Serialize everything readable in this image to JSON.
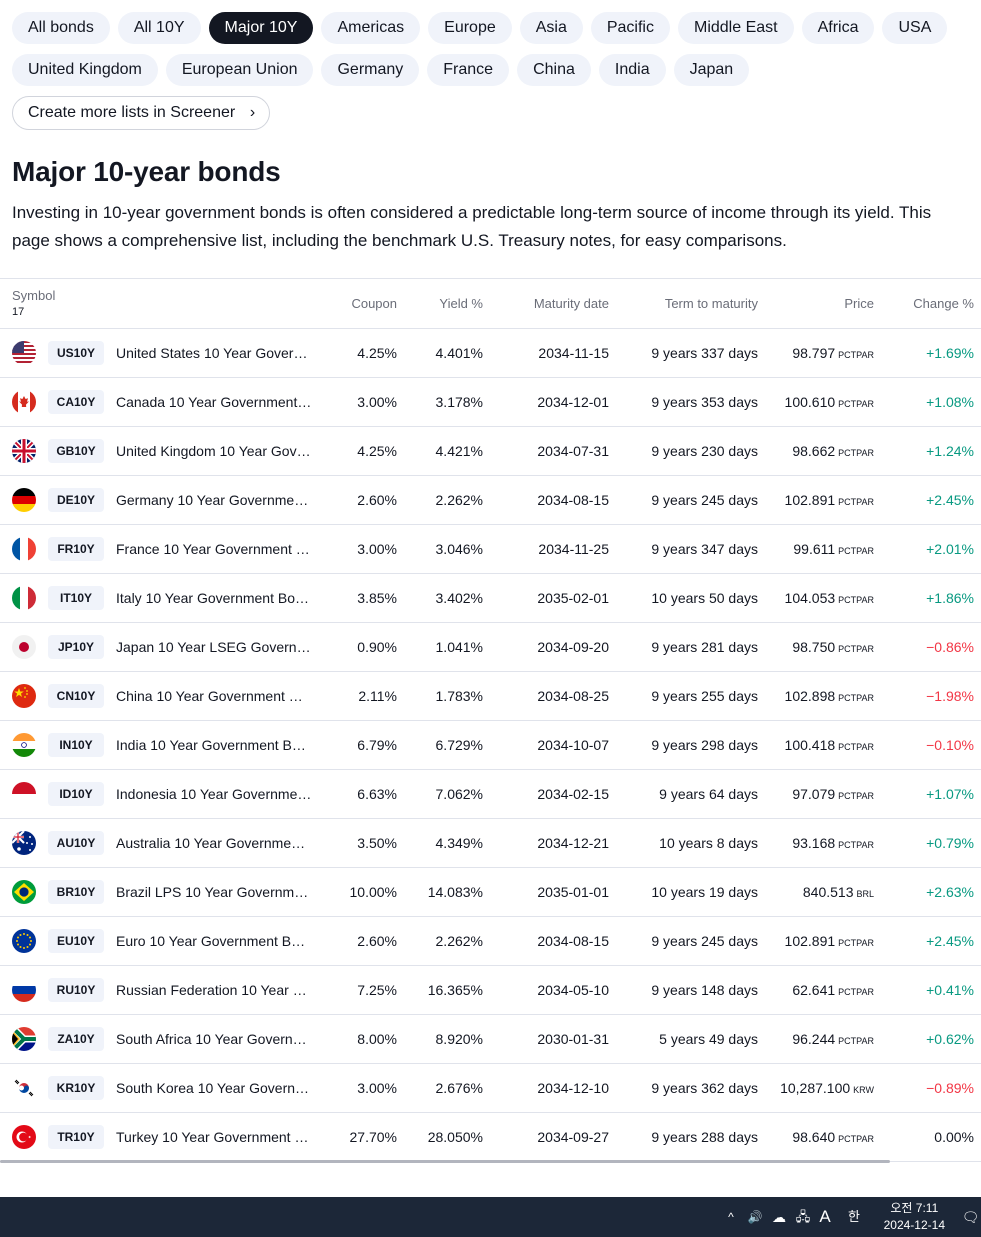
{
  "filters": {
    "row1": [
      "All bonds",
      "All 10Y",
      "Major 10Y",
      "Americas",
      "Europe",
      "Asia",
      "Pacific",
      "Middle East",
      "Africa",
      "USA"
    ],
    "row2": [
      "United Kingdom",
      "European Union",
      "Germany",
      "France",
      "China",
      "India",
      "Japan"
    ],
    "active": "Major 10Y",
    "screener_link": "Create more lists in Screener",
    "screener_chevron": "›"
  },
  "page": {
    "title": "Major 10-year bonds",
    "description": "Investing in 10-year government bonds is often considered a predictable long-term source of income through its yield. This page shows a comprehensive list, including the benchmark U.S. Treasury notes, for easy comparisons."
  },
  "table": {
    "headers": {
      "symbol": "Symbol",
      "count": "17",
      "coupon": "Coupon",
      "yield": "Yield %",
      "maturity": "Maturity date",
      "term": "Term to maturity",
      "price": "Price",
      "change": "Change %"
    },
    "rows": [
      {
        "flag": "us-flag-icon",
        "ticker": "US10Y",
        "name": "United States 10 Year Gover…",
        "coupon": "4.25%",
        "yield": "4.401%",
        "maturity": "2034-11-15",
        "term": "9 years 337 days",
        "price": "98.797",
        "unit": "PCTPAR",
        "change": "+1.69%",
        "dir": "pos"
      },
      {
        "flag": "ca-flag-icon",
        "ticker": "CA10Y",
        "name": "Canada 10 Year Government …",
        "coupon": "3.00%",
        "yield": "3.178%",
        "maturity": "2034-12-01",
        "term": "9 years 353 days",
        "price": "100.610",
        "unit": "PCTPAR",
        "change": "+1.08%",
        "dir": "pos"
      },
      {
        "flag": "gb-flag-icon",
        "ticker": "GB10Y",
        "name": "United Kingdom 10 Year Gov…",
        "coupon": "4.25%",
        "yield": "4.421%",
        "maturity": "2034-07-31",
        "term": "9 years 230 days",
        "price": "98.662",
        "unit": "PCTPAR",
        "change": "+1.24%",
        "dir": "pos"
      },
      {
        "flag": "de-flag-icon",
        "ticker": "DE10Y",
        "name": "Germany 10 Year Governmen…",
        "coupon": "2.60%",
        "yield": "2.262%",
        "maturity": "2034-08-15",
        "term": "9 years 245 days",
        "price": "102.891",
        "unit": "PCTPAR",
        "change": "+2.45%",
        "dir": "pos"
      },
      {
        "flag": "fr-flag-icon",
        "ticker": "FR10Y",
        "name": "France 10 Year Government …",
        "coupon": "3.00%",
        "yield": "3.046%",
        "maturity": "2034-11-25",
        "term": "9 years 347 days",
        "price": "99.611",
        "unit": "PCTPAR",
        "change": "+2.01%",
        "dir": "pos"
      },
      {
        "flag": "it-flag-icon",
        "ticker": "IT10Y",
        "name": "Italy 10 Year Government Bo…",
        "coupon": "3.85%",
        "yield": "3.402%",
        "maturity": "2035-02-01",
        "term": "10 years 50 days",
        "price": "104.053",
        "unit": "PCTPAR",
        "change": "+1.86%",
        "dir": "pos"
      },
      {
        "flag": "jp-flag-icon",
        "ticker": "JP10Y",
        "name": "Japan 10 Year LSEG Govern…",
        "coupon": "0.90%",
        "yield": "1.041%",
        "maturity": "2034-09-20",
        "term": "9 years 281 days",
        "price": "98.750",
        "unit": "PCTPAR",
        "change": "−0.86%",
        "dir": "neg"
      },
      {
        "flag": "cn-flag-icon",
        "ticker": "CN10Y",
        "name": "China 10 Year Government B…",
        "coupon": "2.11%",
        "yield": "1.783%",
        "maturity": "2034-08-25",
        "term": "9 years 255 days",
        "price": "102.898",
        "unit": "PCTPAR",
        "change": "−1.98%",
        "dir": "neg"
      },
      {
        "flag": "in-flag-icon",
        "ticker": "IN10Y",
        "name": "India 10 Year Government Bo…",
        "coupon": "6.79%",
        "yield": "6.729%",
        "maturity": "2034-10-07",
        "term": "9 years 298 days",
        "price": "100.418",
        "unit": "PCTPAR",
        "change": "−0.10%",
        "dir": "neg"
      },
      {
        "flag": "id-flag-icon",
        "ticker": "ID10Y",
        "name": "Indonesia 10 Year Governme…",
        "coupon": "6.63%",
        "yield": "7.062%",
        "maturity": "2034-02-15",
        "term": "9 years 64 days",
        "price": "97.079",
        "unit": "PCTPAR",
        "change": "+1.07%",
        "dir": "pos"
      },
      {
        "flag": "au-flag-icon",
        "ticker": "AU10Y",
        "name": "Australia 10 Year Governmen…",
        "coupon": "3.50%",
        "yield": "4.349%",
        "maturity": "2034-12-21",
        "term": "10 years 8 days",
        "price": "93.168",
        "unit": "PCTPAR",
        "change": "+0.79%",
        "dir": "pos"
      },
      {
        "flag": "br-flag-icon",
        "ticker": "BR10Y",
        "name": "Brazil LPS 10 Year Governme…",
        "coupon": "10.00%",
        "yield": "14.083%",
        "maturity": "2035-01-01",
        "term": "10 years 19 days",
        "price": "840.513",
        "unit": "BRL",
        "change": "+2.63%",
        "dir": "pos"
      },
      {
        "flag": "eu-flag-icon",
        "ticker": "EU10Y",
        "name": "Euro 10 Year Government Bo…",
        "coupon": "2.60%",
        "yield": "2.262%",
        "maturity": "2034-08-15",
        "term": "9 years 245 days",
        "price": "102.891",
        "unit": "PCTPAR",
        "change": "+2.45%",
        "dir": "pos"
      },
      {
        "flag": "ru-flag-icon",
        "ticker": "RU10Y",
        "name": "Russian Federation 10 Year G…",
        "coupon": "7.25%",
        "yield": "16.365%",
        "maturity": "2034-05-10",
        "term": "9 years 148 days",
        "price": "62.641",
        "unit": "PCTPAR",
        "change": "+0.41%",
        "dir": "pos"
      },
      {
        "flag": "za-flag-icon",
        "ticker": "ZA10Y",
        "name": "South Africa 10 Year Govern…",
        "coupon": "8.00%",
        "yield": "8.920%",
        "maturity": "2030-01-31",
        "term": "5 years 49 days",
        "price": "96.244",
        "unit": "PCTPAR",
        "change": "+0.62%",
        "dir": "pos"
      },
      {
        "flag": "kr-flag-icon",
        "ticker": "KR10Y",
        "name": "South Korea 10 Year Govern…",
        "coupon": "3.00%",
        "yield": "2.676%",
        "maturity": "2034-12-10",
        "term": "9 years 362 days",
        "price": "10,287.100",
        "unit": "KRW",
        "change": "−0.89%",
        "dir": "neg"
      },
      {
        "flag": "tr-flag-icon",
        "ticker": "TR10Y",
        "name": "Turkey 10 Year Government …",
        "coupon": "27.70%",
        "yield": "28.050%",
        "maturity": "2034-09-27",
        "term": "9 years 288 days",
        "price": "98.640",
        "unit": "PCTPAR",
        "change": "0.00%",
        "dir": "neu"
      }
    ]
  },
  "colors": {
    "positive": "#089981",
    "negative": "#f23645",
    "chip_active_bg": "#131722",
    "chip_bg": "#f0f3fa",
    "taskbar": "#1c2738"
  },
  "taskbar": {
    "time": "오전 7:11",
    "date": "2024-12-14",
    "tray_up": "^",
    "tray_sound": "🔊",
    "tray_cloud": "☁",
    "tray_network": "🖧",
    "tray_ime": "A",
    "tray_ime_kr": "한",
    "tray_notif": "🗨"
  }
}
